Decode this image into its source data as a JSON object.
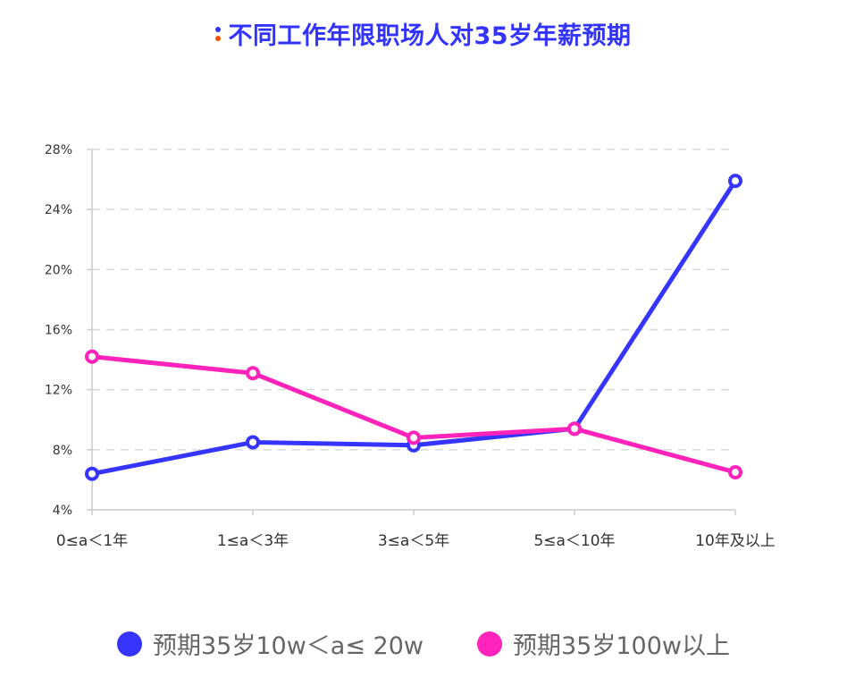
{
  "title": "不同工作年限职场人对35岁年薪预期",
  "title_dot_colors": [
    "#3333ff",
    "#ff5500"
  ],
  "chart_data": {
    "type": "line",
    "title": "不同工作年限职场人对35岁年薪预期",
    "categories": [
      "0≤a＜1年",
      "1≤a＜3年",
      "3≤a＜5年",
      "5≤a＜10年",
      "10年及以上"
    ],
    "ylim": [
      4,
      28
    ],
    "yticks": [
      4,
      8,
      12,
      16,
      20,
      24,
      28
    ],
    "ytick_labels": [
      "4%",
      "8%",
      "12%",
      "16%",
      "20%",
      "24%",
      "28%"
    ],
    "grid": true,
    "legend_position": "bottom",
    "series": [
      {
        "name": "预期35岁10w＜a≤ 20w",
        "color": "#3535ff",
        "values": [
          6.4,
          8.5,
          8.3,
          9.4,
          25.9
        ]
      },
      {
        "name": "预期35岁100w以上",
        "color": "#ff22bb",
        "values": [
          14.2,
          13.1,
          8.8,
          9.4,
          6.5
        ]
      }
    ]
  }
}
